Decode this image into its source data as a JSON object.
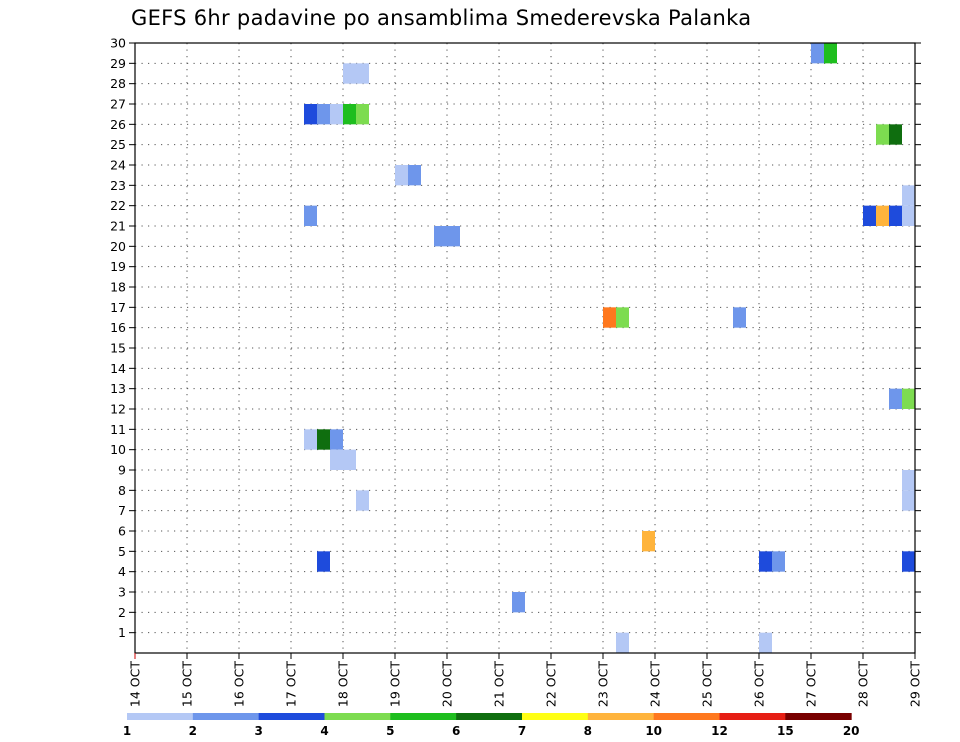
{
  "chart_data": {
    "type": "heatmap",
    "title": "GEFS 6hr padavine po ansamblima Smederevska Palanka",
    "y_ticks": [
      1,
      2,
      3,
      4,
      5,
      6,
      7,
      8,
      9,
      10,
      11,
      12,
      13,
      14,
      15,
      16,
      17,
      18,
      19,
      20,
      21,
      22,
      23,
      24,
      25,
      26,
      27,
      28,
      29,
      30
    ],
    "ylim": [
      0,
      30
    ],
    "x_ticks": [
      "14 OCT",
      "15 OCT",
      "16 OCT",
      "17 OCT",
      "18 OCT",
      "19 OCT",
      "20 OCT",
      "21 OCT",
      "22 OCT",
      "23 OCT",
      "24 OCT",
      "25 OCT",
      "26 OCT",
      "27 OCT",
      "28 OCT",
      "29 OCT"
    ],
    "x_range_days": [
      14,
      29
    ],
    "grid": true,
    "colorbar": {
      "colors": [
        "#b4c8f5",
        "#6e96eb",
        "#1e4bdc",
        "#7ddc50",
        "#1ebe1e",
        "#0f6e0f",
        "#ffff14",
        "#ffb43c",
        "#ff781e",
        "#e61e14",
        "#780000"
      ],
      "labels": [
        "1",
        "2",
        "3",
        "4",
        "5",
        "6",
        "7",
        "8",
        "10",
        "12",
        "15",
        "20"
      ]
    },
    "cells": [
      {
        "day": 27.0,
        "ens": 29,
        "bin": 1
      },
      {
        "day": 27.25,
        "ens": 29,
        "bin": 4
      },
      {
        "day": 18.0,
        "ens": 28,
        "bin": 0
      },
      {
        "day": 18.25,
        "ens": 28,
        "bin": 0
      },
      {
        "day": 17.25,
        "ens": 26,
        "bin": 2
      },
      {
        "day": 17.5,
        "ens": 26,
        "bin": 1
      },
      {
        "day": 17.75,
        "ens": 26,
        "bin": 0
      },
      {
        "day": 18.0,
        "ens": 26,
        "bin": 4
      },
      {
        "day": 18.25,
        "ens": 26,
        "bin": 3
      },
      {
        "day": 28.25,
        "ens": 25,
        "bin": 3
      },
      {
        "day": 28.5,
        "ens": 25,
        "bin": 5
      },
      {
        "day": 19.0,
        "ens": 23,
        "bin": 0
      },
      {
        "day": 19.25,
        "ens": 23,
        "bin": 1
      },
      {
        "day": 28.75,
        "ens": 22,
        "bin": 0
      },
      {
        "day": 17.25,
        "ens": 21,
        "bin": 1
      },
      {
        "day": 28.0,
        "ens": 21,
        "bin": 2
      },
      {
        "day": 28.25,
        "ens": 21,
        "bin": 7
      },
      {
        "day": 28.5,
        "ens": 21,
        "bin": 2
      },
      {
        "day": 28.75,
        "ens": 21,
        "bin": 0
      },
      {
        "day": 19.75,
        "ens": 20,
        "bin": 1
      },
      {
        "day": 20.0,
        "ens": 20,
        "bin": 1
      },
      {
        "day": 23.0,
        "ens": 16,
        "bin": 8
      },
      {
        "day": 23.25,
        "ens": 16,
        "bin": 3
      },
      {
        "day": 25.5,
        "ens": 16,
        "bin": 1
      },
      {
        "day": 28.5,
        "ens": 12,
        "bin": 1
      },
      {
        "day": 28.75,
        "ens": 12,
        "bin": 3
      },
      {
        "day": 17.25,
        "ens": 10,
        "bin": 0
      },
      {
        "day": 17.5,
        "ens": 10,
        "bin": 5
      },
      {
        "day": 17.75,
        "ens": 10,
        "bin": 1
      },
      {
        "day": 17.75,
        "ens": 9,
        "bin": 0
      },
      {
        "day": 18.0,
        "ens": 9,
        "bin": 0
      },
      {
        "day": 28.75,
        "ens": 8,
        "bin": 0
      },
      {
        "day": 28.75,
        "ens": 7,
        "bin": 0
      },
      {
        "day": 18.25,
        "ens": 7,
        "bin": 0
      },
      {
        "day": 23.75,
        "ens": 5,
        "bin": 7
      },
      {
        "day": 17.5,
        "ens": 4,
        "bin": 2
      },
      {
        "day": 26.0,
        "ens": 4,
        "bin": 2
      },
      {
        "day": 26.25,
        "ens": 4,
        "bin": 1
      },
      {
        "day": 28.75,
        "ens": 4,
        "bin": 2
      },
      {
        "day": 21.25,
        "ens": 2,
        "bin": 1
      },
      {
        "day": 23.25,
        "ens": 0,
        "bin": 0
      },
      {
        "day": 26.0,
        "ens": 0,
        "bin": 0
      }
    ]
  }
}
